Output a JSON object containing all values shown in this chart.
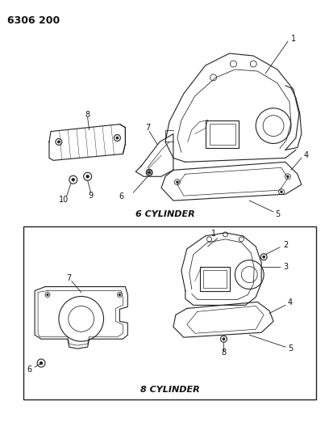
{
  "title": "6306 200",
  "bg_color": "#ffffff",
  "fig_width": 4.08,
  "fig_height": 5.33,
  "dpi": 100,
  "top_label": "6 CYLINDER",
  "bottom_label": "8 CYLINDER",
  "line_color": "#222222",
  "text_color": "#111111"
}
